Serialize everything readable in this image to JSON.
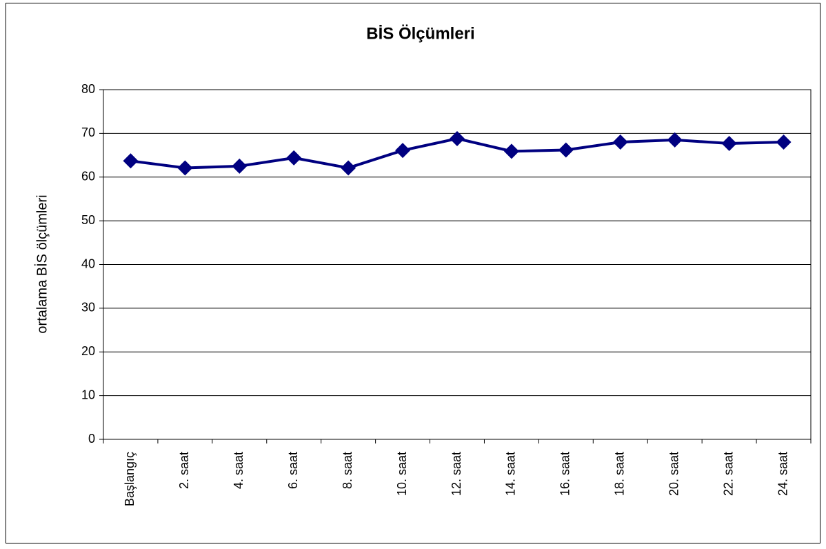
{
  "chart_data": {
    "type": "line",
    "title": "BİS Ölçümleri",
    "y_label": "ortalama BİS ölçümleri",
    "categories": [
      "Başlangıç",
      "2. saat",
      "4. saat",
      "6. saat",
      "8. saat",
      "10. saat",
      "12. saat",
      "14. saat",
      "16. saat",
      "18. saat",
      "20. saat",
      "22. saat",
      "24. saat"
    ],
    "series": [
      {
        "color": "#000080",
        "values": [
          63.7,
          62.1,
          62.5,
          64.4,
          62.1,
          66.1,
          68.8,
          65.9,
          66.2,
          68.0,
          68.5,
          67.7,
          68.0
        ]
      }
    ],
    "ylim": [
      0,
      80
    ],
    "yticks": [
      0,
      10,
      20,
      30,
      40,
      50,
      60,
      70,
      80
    ],
    "grid": true
  }
}
